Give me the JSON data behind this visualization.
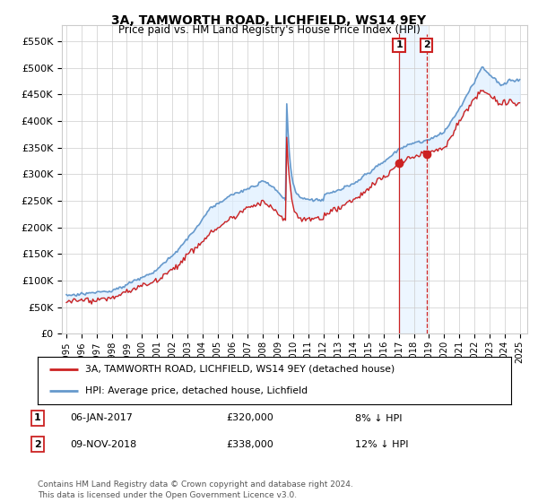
{
  "title": "3A, TAMWORTH ROAD, LICHFIELD, WS14 9EY",
  "subtitle": "Price paid vs. HM Land Registry's House Price Index (HPI)",
  "ytick_values": [
    0,
    50000,
    100000,
    150000,
    200000,
    250000,
    300000,
    350000,
    400000,
    450000,
    500000,
    550000
  ],
  "ylim": [
    0,
    580000
  ],
  "xlim_start": 1994.7,
  "xlim_end": 2025.5,
  "hpi_color": "#6699cc",
  "hpi_fill_color": "#ddeeff",
  "price_color": "#cc2222",
  "marker1_x": 2017.02,
  "marker1_y": 320000,
  "marker1_label": "1",
  "marker1_date": "06-JAN-2017",
  "marker1_price": "£320,000",
  "marker1_hpi": "8% ↓ HPI",
  "marker2_x": 2018.84,
  "marker2_y": 338000,
  "marker2_label": "2",
  "marker2_date": "09-NOV-2018",
  "marker2_price": "£338,000",
  "marker2_hpi": "12% ↓ HPI",
  "legend_house": "3A, TAMWORTH ROAD, LICHFIELD, WS14 9EY (detached house)",
  "legend_hpi": "HPI: Average price, detached house, Lichfield",
  "footnote": "Contains HM Land Registry data © Crown copyright and database right 2024.\nThis data is licensed under the Open Government Licence v3.0.",
  "background_color": "#ffffff",
  "grid_color": "#cccccc"
}
